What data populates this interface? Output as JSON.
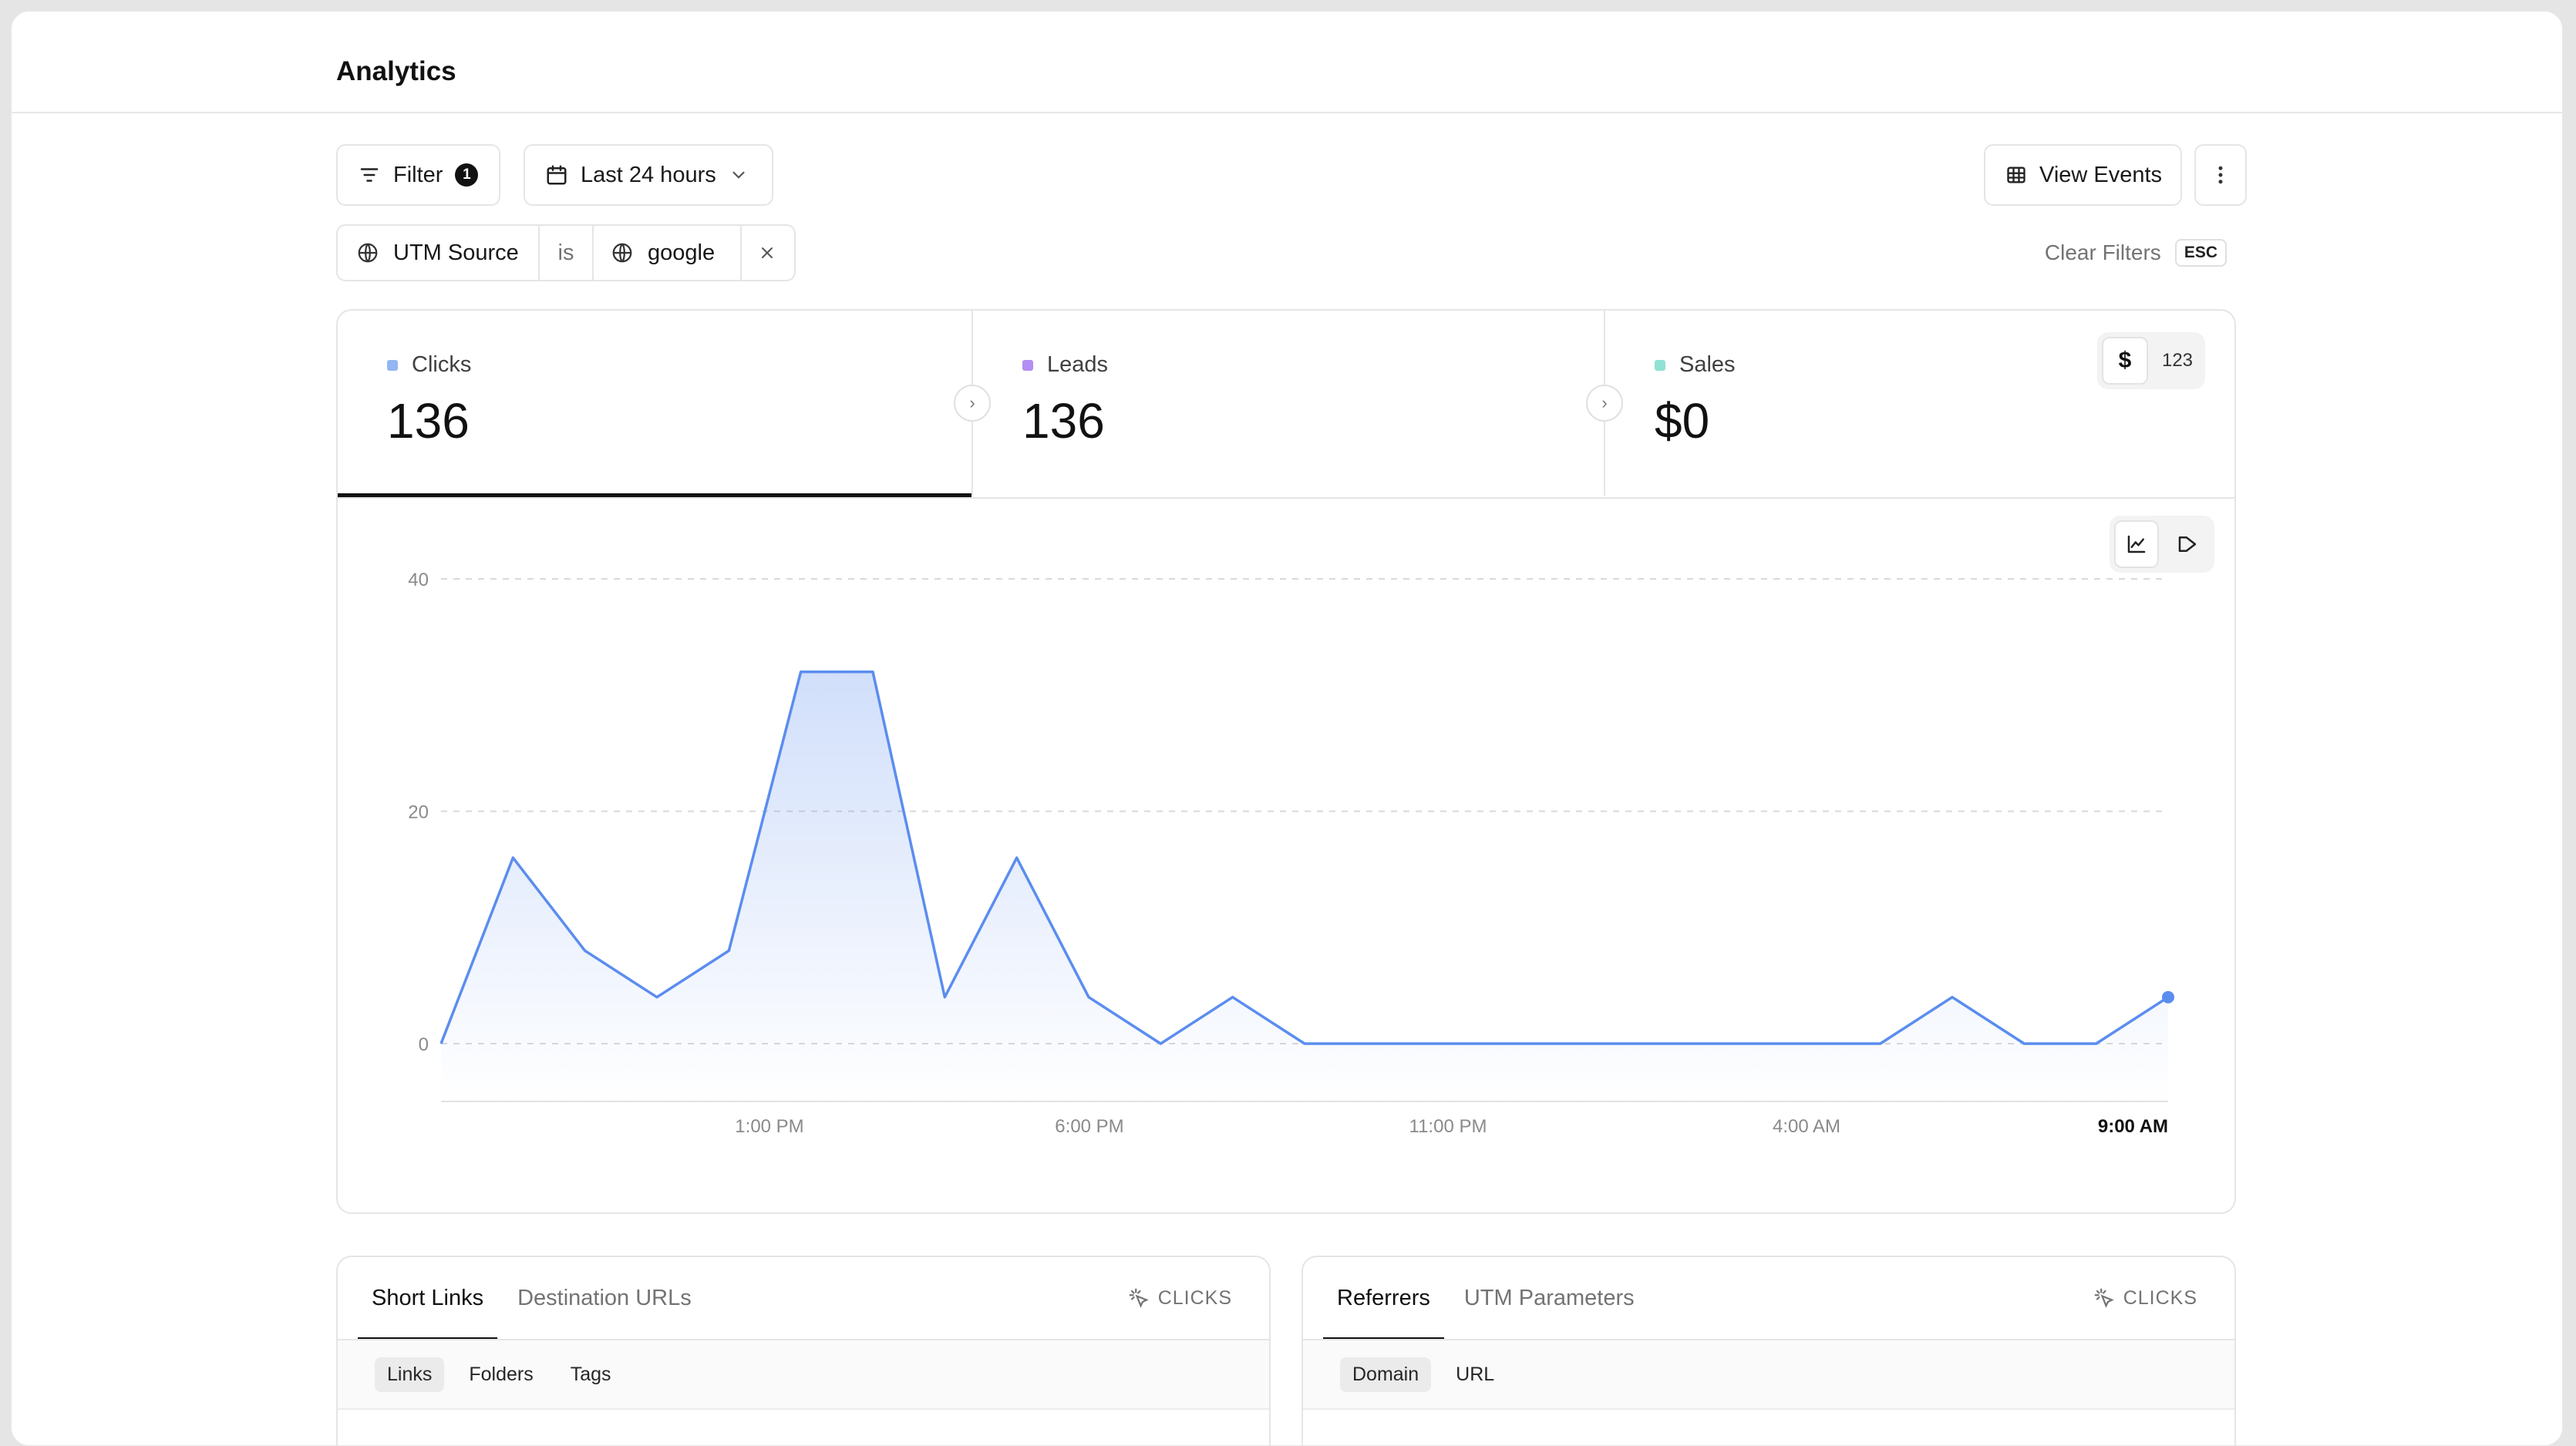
{
  "page": {
    "title": "Analytics"
  },
  "toolbar": {
    "filter_label": "Filter",
    "filter_count": "1",
    "date_range_label": "Last 24 hours",
    "view_events_label": "View Events"
  },
  "active_filter": {
    "field": "UTM Source",
    "operator": "is",
    "value": "google"
  },
  "clear_filters": {
    "label": "Clear Filters",
    "shortcut": "ESC"
  },
  "metrics": [
    {
      "label": "Clicks",
      "value": "136",
      "color": "#93b5f4"
    },
    {
      "label": "Leads",
      "value": "136",
      "color": "#b48df2"
    },
    {
      "label": "Sales",
      "value": "$0",
      "color": "#8fe2d3"
    }
  ],
  "sales_unit_toggle": {
    "currency": "$",
    "count": "123",
    "selected": "currency"
  },
  "chart_view_toggle": {
    "selected": "line-chart-icon",
    "options": [
      "line-chart-icon",
      "funnel-icon"
    ]
  },
  "chart_data": {
    "type": "area",
    "series": [
      {
        "values": [
          0,
          16,
          8,
          4,
          8,
          32,
          32,
          4,
          16,
          4,
          0,
          4,
          0,
          0,
          0,
          0,
          0,
          0,
          0,
          0,
          0,
          4,
          0,
          0,
          4
        ]
      }
    ],
    "ylim": [
      0,
      40
    ],
    "yticks": [
      "0",
      "20",
      "40"
    ],
    "xtick_labels": [
      "1:00 PM",
      "6:00 PM",
      "11:00 PM",
      "4:00 AM",
      "9:00 AM"
    ],
    "grid": true,
    "color": "#5b8def"
  },
  "panels": [
    {
      "tabs": [
        "Short Links",
        "Destination URLs"
      ],
      "active_tab": 0,
      "metric_label": "CLICKS",
      "subtabs": [
        "Links",
        "Folders",
        "Tags"
      ],
      "active_subtab": 0
    },
    {
      "tabs": [
        "Referrers",
        "UTM Parameters"
      ],
      "active_tab": 0,
      "metric_label": "CLICKS",
      "subtabs": [
        "Domain",
        "URL"
      ],
      "active_subtab": 0
    }
  ]
}
